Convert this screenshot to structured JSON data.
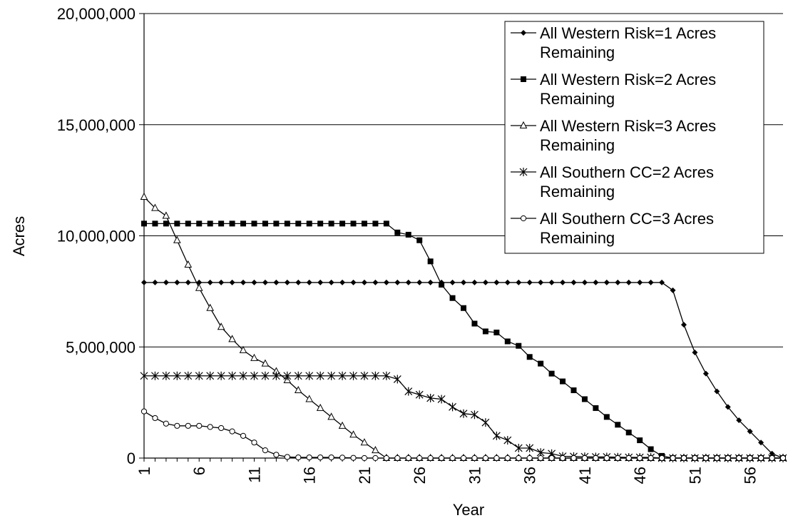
{
  "chart_data": {
    "type": "line",
    "title": "",
    "xlabel": "Year",
    "ylabel": "Acres",
    "ylim": [
      0,
      20000000
    ],
    "xlim": [
      1,
      59
    ],
    "y_ticks": [
      "0",
      "5,000,000",
      "10,000,000",
      "15,000,000",
      "20,000,000"
    ],
    "y_tick_values": [
      0,
      5000000,
      10000000,
      15000000,
      20000000
    ],
    "x_ticks": [
      "1",
      "6",
      "11",
      "16",
      "21",
      "26",
      "31",
      "36",
      "41",
      "46",
      "51",
      "56"
    ],
    "x_tick_values": [
      1,
      6,
      11,
      16,
      21,
      26,
      31,
      36,
      41,
      46,
      51,
      56
    ],
    "grid": "horizontal",
    "legend_position": "top-right",
    "series": [
      {
        "name": "All Western Risk=1 Acres Remaining",
        "marker": "diamond",
        "values": [
          7900000,
          7900000,
          7900000,
          7900000,
          7900000,
          7900000,
          7900000,
          7900000,
          7900000,
          7900000,
          7900000,
          7900000,
          7900000,
          7900000,
          7900000,
          7900000,
          7900000,
          7900000,
          7900000,
          7900000,
          7900000,
          7900000,
          7900000,
          7900000,
          7900000,
          7900000,
          7900000,
          7900000,
          7900000,
          7900000,
          7900000,
          7900000,
          7900000,
          7900000,
          7900000,
          7900000,
          7900000,
          7900000,
          7900000,
          7900000,
          7900000,
          7900000,
          7900000,
          7900000,
          7900000,
          7900000,
          7900000,
          7900000,
          7550000,
          6000000,
          4750000,
          3800000,
          3000000,
          2300000,
          1700000,
          1200000,
          700000,
          200000,
          0
        ]
      },
      {
        "name": "All Western Risk=2 Acres Remaining",
        "marker": "square",
        "values": [
          10550000,
          10550000,
          10550000,
          10550000,
          10550000,
          10550000,
          10550000,
          10550000,
          10550000,
          10550000,
          10550000,
          10550000,
          10550000,
          10550000,
          10550000,
          10550000,
          10550000,
          10550000,
          10550000,
          10550000,
          10550000,
          10550000,
          10550000,
          10150000,
          10050000,
          9800000,
          8850000,
          7800000,
          7200000,
          6750000,
          6050000,
          5700000,
          5650000,
          5250000,
          5050000,
          4550000,
          4250000,
          3800000,
          3450000,
          3050000,
          2650000,
          2250000,
          1850000,
          1500000,
          1150000,
          800000,
          400000,
          100000,
          0,
          0,
          0,
          0,
          0,
          0,
          0,
          0,
          0,
          0,
          0
        ]
      },
      {
        "name": "All Western Risk=3 Acres Remaining",
        "marker": "triangle",
        "values": [
          11750000,
          11250000,
          10900000,
          9800000,
          8700000,
          7650000,
          6750000,
          5900000,
          5350000,
          4850000,
          4500000,
          4250000,
          3900000,
          3500000,
          3050000,
          2650000,
          2250000,
          1850000,
          1450000,
          1050000,
          700000,
          350000,
          0,
          0,
          0,
          0,
          0,
          0,
          0,
          0,
          0,
          0,
          0,
          0,
          0,
          0,
          0,
          0,
          0,
          0,
          0,
          0,
          0,
          0,
          0,
          0,
          0,
          0,
          0,
          0,
          0,
          0,
          0,
          0,
          0,
          0,
          0,
          0,
          0
        ]
      },
      {
        "name": "All Southern CC=2 Acres Remaining",
        "marker": "asterisk",
        "values": [
          3700000,
          3700000,
          3700000,
          3700000,
          3700000,
          3700000,
          3700000,
          3700000,
          3700000,
          3700000,
          3700000,
          3700000,
          3700000,
          3700000,
          3700000,
          3700000,
          3700000,
          3700000,
          3700000,
          3700000,
          3700000,
          3700000,
          3700000,
          3550000,
          3000000,
          2850000,
          2700000,
          2650000,
          2300000,
          2000000,
          1950000,
          1600000,
          1000000,
          800000,
          450000,
          450000,
          250000,
          200000,
          80000,
          70000,
          60000,
          50000,
          50000,
          40000,
          30000,
          30000,
          30000,
          0,
          0,
          0,
          0,
          0,
          0,
          0,
          0,
          0,
          0,
          0,
          0
        ]
      },
      {
        "name": "All Southern CC=3 Acres Remaining",
        "marker": "circle",
        "values": [
          2100000,
          1800000,
          1550000,
          1450000,
          1450000,
          1450000,
          1400000,
          1350000,
          1200000,
          1000000,
          700000,
          350000,
          150000,
          50000,
          30000,
          30000,
          30000,
          30000,
          20000,
          10000,
          0,
          0,
          0,
          0,
          0,
          0,
          0,
          0,
          0,
          0,
          0,
          0,
          0,
          0,
          0,
          0,
          0,
          0,
          0,
          0,
          0,
          0,
          0,
          0,
          0,
          0,
          0,
          0,
          0,
          0,
          0,
          0,
          0,
          0,
          0,
          0,
          0,
          0,
          0
        ]
      }
    ]
  }
}
